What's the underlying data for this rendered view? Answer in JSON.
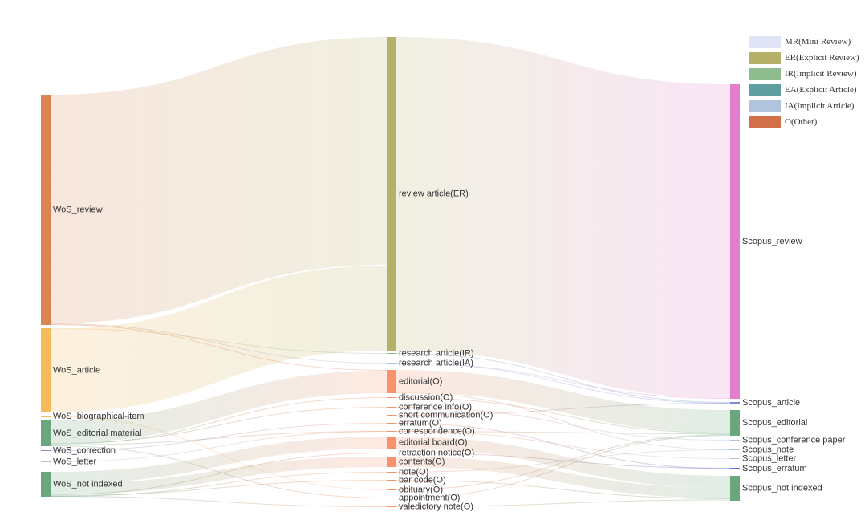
{
  "chart_data": {
    "type": "sankey",
    "legend": [
      {
        "label": "MR(Mini Review)",
        "color": "#e1e4f7"
      },
      {
        "label": "ER(Explicit Review)",
        "color": "#b5b169"
      },
      {
        "label": "IR(Implicit Review)",
        "color": "#8fbc8f"
      },
      {
        "label": "EA(Explicit Article)",
        "color": "#5f9ea0"
      },
      {
        "label": "IA(Implicit Article)",
        "color": "#b0c4de"
      },
      {
        "label": "O(Other)",
        "color": "#d2704a"
      }
    ],
    "nodes": [
      {
        "id": "WoS_review",
        "label": "WoS_review",
        "column": 0,
        "color": "#d98453",
        "top": 118,
        "bottom": 405
      },
      {
        "id": "WoS_article",
        "label": "WoS_article",
        "column": 0,
        "color": "#f6b95c",
        "top": 409,
        "bottom": 514
      },
      {
        "id": "WoS_biographical-item",
        "label": "WoS_biographical-item",
        "column": 0,
        "color": "#f6b95c",
        "top": 518,
        "bottom": 520
      },
      {
        "id": "WoS_editorial material",
        "label": "WoS_editorial material",
        "column": 0,
        "color": "#6aa77f",
        "top": 524,
        "bottom": 556
      },
      {
        "id": "WoS_correction",
        "label": "WoS_correction",
        "column": 0,
        "color": "#7f8fd6",
        "top": 561,
        "bottom": 562
      },
      {
        "id": "WoS_letter",
        "label": "WoS_letter",
        "column": 0,
        "color": "#b0c4de",
        "top": 575,
        "bottom": 576
      },
      {
        "id": "WoS_not indexed",
        "label": "WoS_not indexed",
        "column": 0,
        "color": "#6aa77f",
        "top": 588,
        "bottom": 619
      },
      {
        "id": "review article(ER)",
        "label": "review article(ER)",
        "column": 1,
        "color": "#b5b169",
        "top": 46,
        "bottom": 437
      },
      {
        "id": "research article(IR)",
        "label": "research article(IR)",
        "column": 1,
        "color": "#8fbc8f",
        "top": 440,
        "bottom": 441
      },
      {
        "id": "research article(IA)",
        "label": "research article(IA)",
        "column": 1,
        "color": "#b0c4de",
        "top": 452,
        "bottom": 453
      },
      {
        "id": "editorial(O)",
        "label": "editorial(O)",
        "column": 1,
        "color": "#f4936c",
        "top": 461,
        "bottom": 490
      },
      {
        "id": "discussion(O)",
        "label": "discussion(O)",
        "column": 1,
        "color": "#f4936c",
        "top": 495,
        "bottom": 496
      },
      {
        "id": "conference info(O)",
        "label": "conference info(O)",
        "column": 1,
        "color": "#f4936c",
        "top": 507,
        "bottom": 508
      },
      {
        "id": "short communication(O)",
        "label": "short communication(O)",
        "column": 1,
        "color": "#f4936c",
        "top": 517,
        "bottom": 518
      },
      {
        "id": "erratum(O)",
        "label": "erratum(O)",
        "column": 1,
        "color": "#f4936c",
        "top": 527,
        "bottom": 528
      },
      {
        "id": "correspondence(O)",
        "label": "correspondence(O)",
        "column": 1,
        "color": "#f4936c",
        "top": 537,
        "bottom": 538
      },
      {
        "id": "editorial board(O)",
        "label": "editorial board(O)",
        "column": 1,
        "color": "#f4936c",
        "top": 544,
        "bottom": 559
      },
      {
        "id": "retraction notice(O)",
        "label": "retraction notice(O)",
        "column": 1,
        "color": "#f4936c",
        "top": 564,
        "bottom": 565
      },
      {
        "id": "contents(O)",
        "label": "contents(O)",
        "column": 1,
        "color": "#f4936c",
        "top": 569,
        "bottom": 582
      },
      {
        "id": "note(O)",
        "label": "note(O)",
        "column": 1,
        "color": "#f4936c",
        "top": 588,
        "bottom": 589
      },
      {
        "id": "bar code(O)",
        "label": "bar code(O)",
        "column": 1,
        "color": "#f4936c",
        "top": 598,
        "bottom": 599
      },
      {
        "id": "obituary(O)",
        "label": "obituary(O)",
        "column": 1,
        "color": "#f4936c",
        "top": 610,
        "bottom": 611
      },
      {
        "id": "appointment(O)",
        "label": "appointment(O)",
        "column": 1,
        "color": "#f4936c",
        "top": 620,
        "bottom": 621
      },
      {
        "id": "valedictory note(O)",
        "label": "valedictory note(O)",
        "column": 1,
        "color": "#f4936c",
        "top": 631,
        "bottom": 632
      },
      {
        "id": "Scopus_review",
        "label": "Scopus_review",
        "column": 2,
        "color": "#e17fcd",
        "top": 105,
        "bottom": 497
      },
      {
        "id": "Scopus_article",
        "label": "Scopus_article",
        "column": 2,
        "color": "#7f8fd6",
        "top": 501,
        "bottom": 503
      },
      {
        "id": "Scopus_editorial",
        "label": "Scopus_editorial",
        "column": 2,
        "color": "#6aa77f",
        "top": 511,
        "bottom": 543
      },
      {
        "id": "Scopus_conference paper",
        "label": "Scopus_conference paper",
        "column": 2,
        "color": "#b0c4de",
        "top": 548,
        "bottom": 549
      },
      {
        "id": "Scopus_note",
        "label": "Scopus_note",
        "column": 2,
        "color": "#b0c4de",
        "top": 560,
        "bottom": 561
      },
      {
        "id": "Scopus_letter",
        "label": "Scopus_letter",
        "column": 2,
        "color": "#b0c4de",
        "top": 571,
        "bottom": 572
      },
      {
        "id": "Scopus_erratum",
        "label": "Scopus_erratum",
        "column": 2,
        "color": "#5b6cd6",
        "top": 583,
        "bottom": 585
      },
      {
        "id": "Scopus_not indexed",
        "label": "Scopus_not indexed",
        "column": 2,
        "color": "#6aa77f",
        "top": 593,
        "bottom": 624
      }
    ],
    "links": [
      {
        "source": "WoS_review",
        "target": "review article(ER)",
        "s0": 118,
        "s1": 403,
        "t0": 46,
        "t1": 330
      },
      {
        "source": "WoS_article",
        "target": "review article(ER)",
        "s0": 410,
        "s1": 514,
        "t0": 331,
        "t1": 437
      },
      {
        "source": "WoS_review",
        "target": "research article(IA)",
        "s0": 403,
        "s1": 404,
        "t0": 452,
        "t1": 453
      },
      {
        "source": "WoS_review",
        "target": "editorial(O)",
        "s0": 404,
        "s1": 405,
        "t0": 461,
        "t1": 462
      },
      {
        "source": "WoS_editorial material",
        "target": "editorial(O)",
        "s0": 524,
        "s1": 552,
        "t0": 462,
        "t1": 490
      },
      {
        "source": "WoS_article",
        "target": "research article(IR)",
        "s0": 409,
        "s1": 410,
        "t0": 440,
        "t1": 441
      },
      {
        "source": "WoS_biographical-item",
        "target": "obituary(O)",
        "s0": 518,
        "s1": 520,
        "t0": 610,
        "t1": 611
      },
      {
        "source": "WoS_editorial material",
        "target": "conference info(O)",
        "s0": 552,
        "s1": 553,
        "t0": 507,
        "t1": 508
      },
      {
        "source": "WoS_editorial material",
        "target": "discussion(O)",
        "s0": 553,
        "s1": 554,
        "t0": 495,
        "t1": 496
      },
      {
        "source": "WoS_editorial material",
        "target": "correspondence(O)",
        "s0": 554,
        "s1": 555,
        "t0": 537,
        "t1": 538
      },
      {
        "source": "WoS_editorial material",
        "target": "appointment(O)",
        "s0": 555,
        "s1": 556,
        "t0": 620,
        "t1": 621
      },
      {
        "source": "WoS_correction",
        "target": "erratum(O)",
        "s0": 561,
        "s1": 562,
        "t0": 527,
        "t1": 528
      },
      {
        "source": "WoS_letter",
        "target": "correspondence(O)",
        "s0": 575,
        "s1": 576,
        "t0": 537,
        "t1": 538
      },
      {
        "source": "WoS_not indexed",
        "target": "editorial board(O)",
        "s0": 588,
        "s1": 603,
        "t0": 544,
        "t1": 559
      },
      {
        "source": "WoS_not indexed",
        "target": "contents(O)",
        "s0": 603,
        "s1": 616,
        "t0": 569,
        "t1": 582
      },
      {
        "source": "WoS_not indexed",
        "target": "retraction notice(O)",
        "s0": 616,
        "s1": 617,
        "t0": 564,
        "t1": 565
      },
      {
        "source": "WoS_not indexed",
        "target": "bar code(O)",
        "s0": 617,
        "s1": 618,
        "t0": 598,
        "t1": 599
      },
      {
        "source": "WoS_not indexed",
        "target": "note(O)",
        "s0": 618,
        "s1": 619,
        "t0": 588,
        "t1": 589
      },
      {
        "source": "WoS_not indexed",
        "target": "valedictory note(O)",
        "s0": 618,
        "s1": 619,
        "t0": 631,
        "t1": 632
      },
      {
        "source": "review article(ER)",
        "target": "Scopus_review",
        "s0": 46,
        "s1": 437,
        "t0": 105,
        "t1": 496
      },
      {
        "source": "research article(IR)",
        "target": "Scopus_article",
        "s0": 440,
        "s1": 441,
        "t0": 501,
        "t1": 502
      },
      {
        "source": "research article(IA)",
        "target": "Scopus_article",
        "s0": 452,
        "s1": 453,
        "t0": 502,
        "t1": 503
      },
      {
        "source": "research article(IA)",
        "target": "Scopus_review",
        "s0": 452,
        "s1": 453,
        "t0": 496,
        "t1": 497
      },
      {
        "source": "editorial(O)",
        "target": "Scopus_editorial",
        "s0": 461,
        "s1": 489,
        "t0": 511,
        "t1": 539
      },
      {
        "source": "editorial(O)",
        "target": "Scopus_note",
        "s0": 489,
        "s1": 490,
        "t0": 560,
        "t1": 561
      },
      {
        "source": "discussion(O)",
        "target": "Scopus_editorial",
        "s0": 495,
        "s1": 496,
        "t0": 539,
        "t1": 540
      },
      {
        "source": "conference info(O)",
        "target": "Scopus_conference paper",
        "s0": 507,
        "s1": 508,
        "t0": 548,
        "t1": 549
      },
      {
        "source": "short communication(O)",
        "target": "Scopus_article",
        "s0": 517,
        "s1": 518,
        "t0": 502,
        "t1": 503
      },
      {
        "source": "erratum(O)",
        "target": "Scopus_erratum",
        "s0": 527,
        "s1": 528,
        "t0": 583,
        "t1": 585
      },
      {
        "source": "correspondence(O)",
        "target": "Scopus_letter",
        "s0": 537,
        "s1": 538,
        "t0": 571,
        "t1": 572
      },
      {
        "source": "correspondence(O)",
        "target": "Scopus_editorial",
        "s0": 537,
        "s1": 538,
        "t0": 540,
        "t1": 541
      },
      {
        "source": "editorial board(O)",
        "target": "Scopus_not indexed",
        "s0": 544,
        "s1": 559,
        "t0": 593,
        "t1": 608
      },
      {
        "source": "retraction notice(O)",
        "target": "Scopus_erratum",
        "s0": 564,
        "s1": 565,
        "t0": 583,
        "t1": 584
      },
      {
        "source": "contents(O)",
        "target": "Scopus_not indexed",
        "s0": 569,
        "s1": 582,
        "t0": 608,
        "t1": 621
      },
      {
        "source": "note(O)",
        "target": "Scopus_note",
        "s0": 588,
        "s1": 589,
        "t0": 560,
        "t1": 561
      },
      {
        "source": "bar code(O)",
        "target": "Scopus_not indexed",
        "s0": 598,
        "s1": 599,
        "t0": 621,
        "t1": 622
      },
      {
        "source": "obituary(O)",
        "target": "Scopus_editorial",
        "s0": 610,
        "s1": 611,
        "t0": 541,
        "t1": 542
      },
      {
        "source": "appointment(O)",
        "target": "Scopus_editorial",
        "s0": 620,
        "s1": 621,
        "t0": 542,
        "t1": 543
      },
      {
        "source": "valedictory note(O)",
        "target": "Scopus_not indexed",
        "s0": 631,
        "s1": 632,
        "t0": 622,
        "t1": 624
      }
    ]
  }
}
